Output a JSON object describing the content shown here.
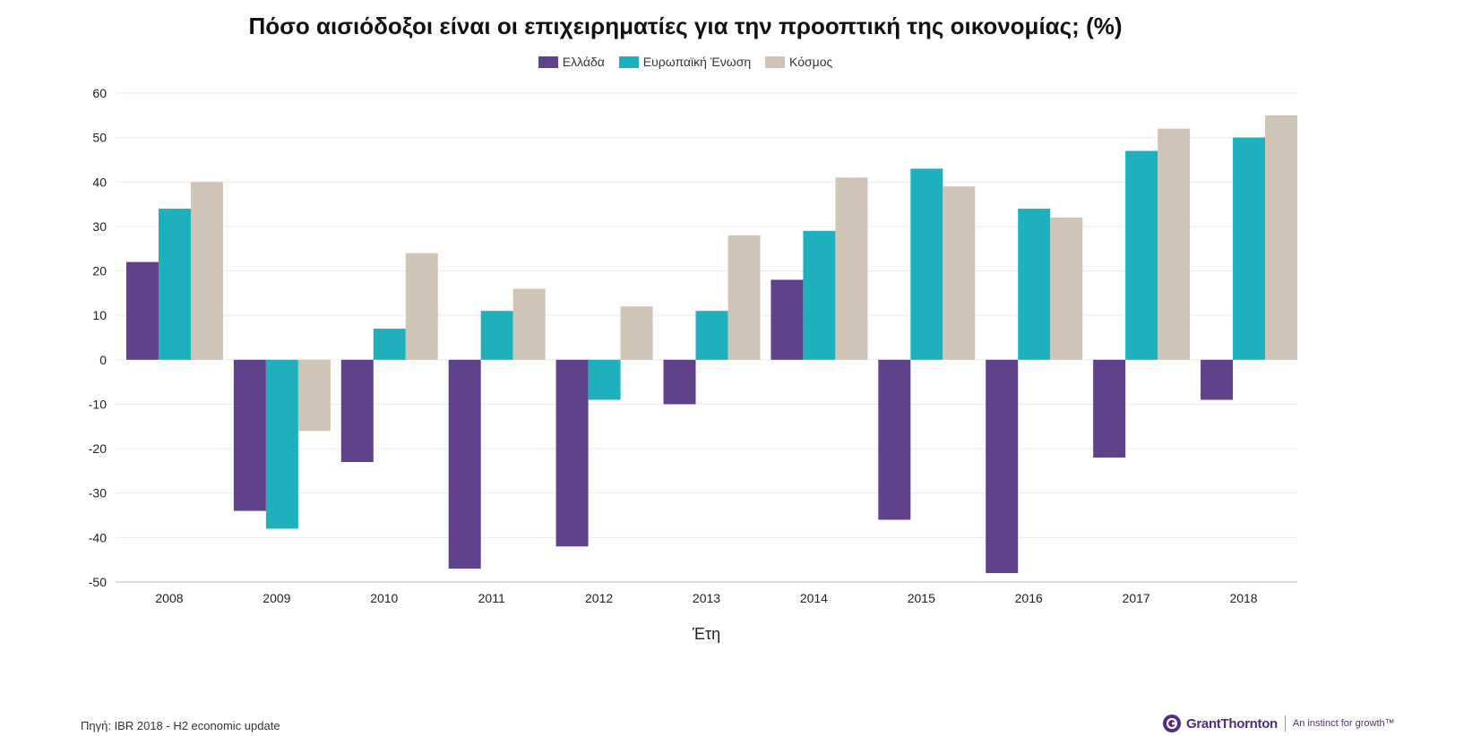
{
  "chart_data": {
    "type": "bar",
    "title": "Πόσο αισιόδοξοι είναι οι επιχειρηματίες για την προοπτική της οικονομίας; (%)",
    "xlabel": "Έτη",
    "ylabel": "",
    "ylim": [
      -50,
      60
    ],
    "yticks": [
      60,
      50,
      40,
      30,
      20,
      10,
      0,
      -10,
      -20,
      -30,
      -40,
      -50
    ],
    "grid": true,
    "legend_position": "top-center",
    "categories": [
      "2008",
      "2009",
      "2010",
      "2011",
      "2012",
      "2013",
      "2014",
      "2015",
      "2016",
      "2017",
      "2018"
    ],
    "series": [
      {
        "name": "Ελλάδα",
        "color": "#60418b",
        "values": [
          22,
          -34,
          -23,
          -47,
          -42,
          -10,
          18,
          -36,
          -48,
          -22,
          -9
        ]
      },
      {
        "name": "Ευρωπαϊκή Ένωση",
        "color": "#1eb1bd",
        "values": [
          34,
          -38,
          7,
          11,
          -9,
          11,
          29,
          43,
          34,
          47,
          50
        ]
      },
      {
        "name": "Κόσμος",
        "color": "#cfc4b5",
        "values": [
          40,
          -16,
          24,
          16,
          12,
          28,
          41,
          39,
          32,
          52,
          55
        ]
      }
    ]
  },
  "footer": {
    "source": "Πηγή: IBR 2018 - H2 economic update",
    "logo_name": "GrantThornton",
    "logo_tagline": "An instinct for growth™",
    "logo_color": "#4f2d7f"
  }
}
